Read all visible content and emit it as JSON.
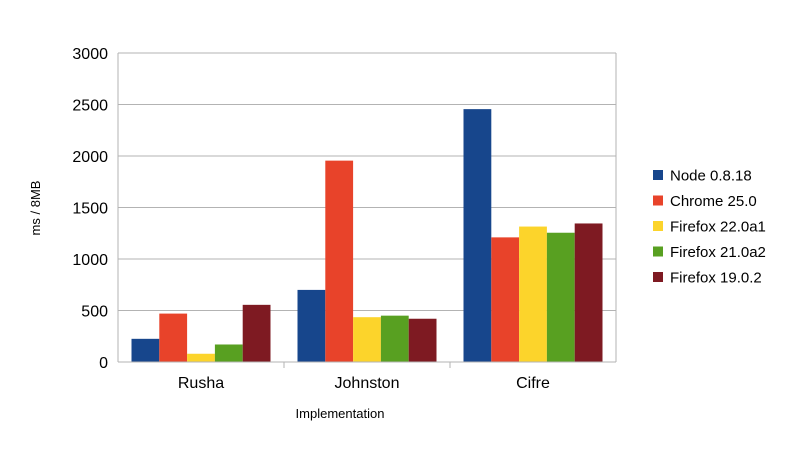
{
  "chart_data": {
    "type": "bar",
    "title": "",
    "xlabel": "Implementation",
    "ylabel": "ms / 8MB",
    "categories": [
      "Rusha",
      "Johnston",
      "Cifre"
    ],
    "ylim": [
      0,
      3000
    ],
    "yticks": [
      0,
      500,
      1000,
      1500,
      2000,
      2500,
      3000
    ],
    "grid": true,
    "legend_position": "right",
    "series": [
      {
        "name": "Node 0.8.18",
        "color": "#17468c",
        "values": [
          225,
          700,
          2455
        ]
      },
      {
        "name": "Chrome 25.0",
        "color": "#e8432a",
        "values": [
          470,
          1955,
          1210
        ]
      },
      {
        "name": "Firefox 22.0a1",
        "color": "#fcd42b",
        "values": [
          80,
          435,
          1315
        ]
      },
      {
        "name": "Firefox 21.0a2",
        "color": "#58a021",
        "values": [
          170,
          450,
          1255
        ]
      },
      {
        "name": "Firefox 19.0.2",
        "color": "#7e1a22",
        "values": [
          555,
          420,
          1345
        ]
      }
    ]
  }
}
